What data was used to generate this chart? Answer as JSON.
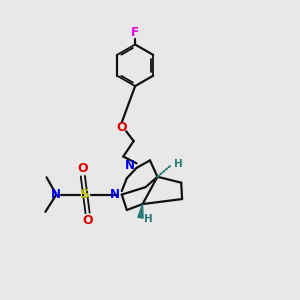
{
  "bg": "#e8e8e8",
  "bc": "#111111",
  "N_c": "#0000ee",
  "O_c": "#dd0000",
  "S_c": "#bbbb00",
  "F_c": "#ee00ee",
  "H_c": "#2a7a7a",
  "figsize": [
    3.0,
    3.0
  ],
  "dpi": 100,
  "xlim": [
    0,
    10
  ],
  "ylim": [
    0,
    10
  ]
}
